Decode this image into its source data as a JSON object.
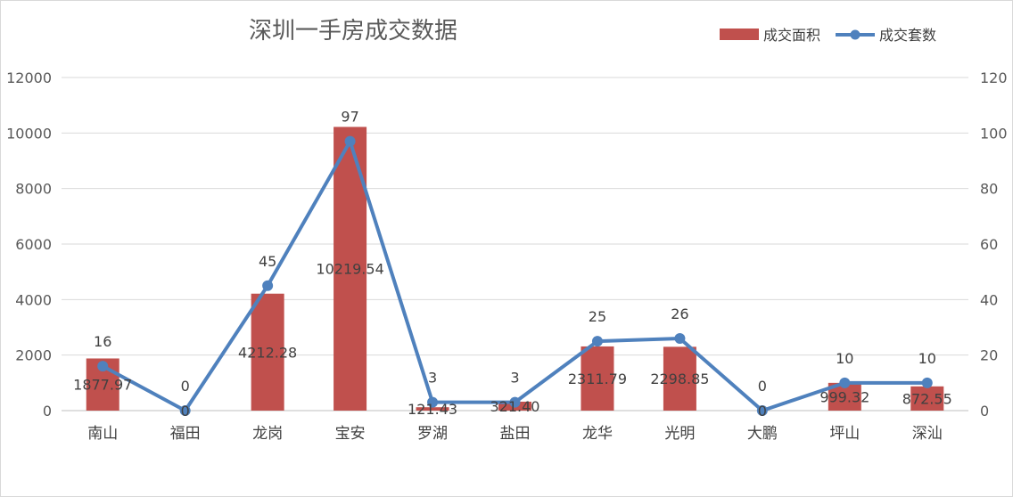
{
  "chart_data": {
    "type": "bar",
    "title": "深圳一手房成交数据",
    "categories": [
      "南山",
      "福田",
      "龙岗",
      "宝安",
      "罗湖",
      "盐田",
      "龙华",
      "光明",
      "大鹏",
      "坪山",
      "深汕"
    ],
    "series": [
      {
        "name": "成交面积",
        "type": "bar",
        "axis": "left",
        "color": "#c0504d",
        "values": [
          1877.97,
          0,
          4212.28,
          10219.54,
          121.43,
          321.4,
          2311.79,
          2298.85,
          0,
          999.32,
          872.55
        ],
        "labels": [
          "1877.97",
          "0",
          "4212.28",
          "10219.54",
          "121.43",
          "321.40",
          "2311.79",
          "2298.85",
          "0",
          "999.32",
          "872.55"
        ]
      },
      {
        "name": "成交套数",
        "type": "line",
        "axis": "right",
        "color": "#4f81bd",
        "values": [
          16,
          0,
          45,
          97,
          3,
          3,
          25,
          26,
          0,
          10,
          10
        ],
        "labels": [
          "16",
          "0",
          "45",
          "97",
          "3",
          "3",
          "25",
          "26",
          "0",
          "10",
          "10"
        ]
      }
    ],
    "y_left": {
      "ylim": [
        0,
        12000
      ],
      "ticks": [
        "0",
        "2000",
        "4000",
        "6000",
        "8000",
        "10000",
        "12000"
      ]
    },
    "y_right": {
      "ylim": [
        0,
        120
      ],
      "ticks": [
        "0",
        "20",
        "40",
        "60",
        "80",
        "100",
        "120"
      ]
    },
    "grid": true,
    "legend_position": "top-right"
  }
}
